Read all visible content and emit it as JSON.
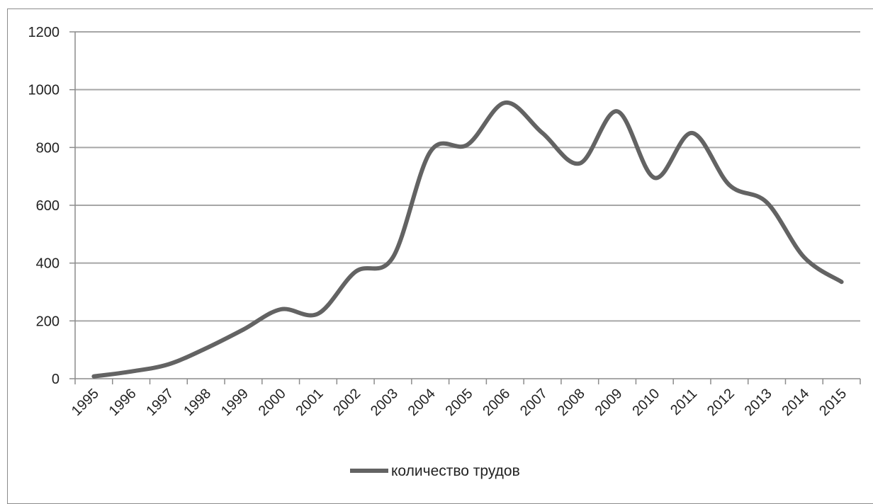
{
  "chart_data": {
    "type": "line",
    "x": [
      "1995",
      "1996",
      "1997",
      "1998",
      "1999",
      "2000",
      "2001",
      "2002",
      "2003",
      "2004",
      "2005",
      "2006",
      "2007",
      "2008",
      "2009",
      "2010",
      "2011",
      "2012",
      "2013",
      "2014",
      "2015"
    ],
    "series": [
      {
        "name": "количество трудов",
        "values": [
          8,
          25,
          50,
          105,
          170,
          240,
          225,
          370,
          420,
          785,
          810,
          955,
          850,
          745,
          925,
          695,
          850,
          670,
          610,
          420,
          335
        ]
      }
    ],
    "ylim": [
      0,
      1200
    ],
    "yticks": [
      "0",
      "200",
      "400",
      "600",
      "800",
      "1000",
      "1200"
    ],
    "grid": true,
    "legend": "bottom",
    "colors": {
      "line": "#636363",
      "grid": "#a6a6a6",
      "axis": "#8c8c8c"
    }
  }
}
